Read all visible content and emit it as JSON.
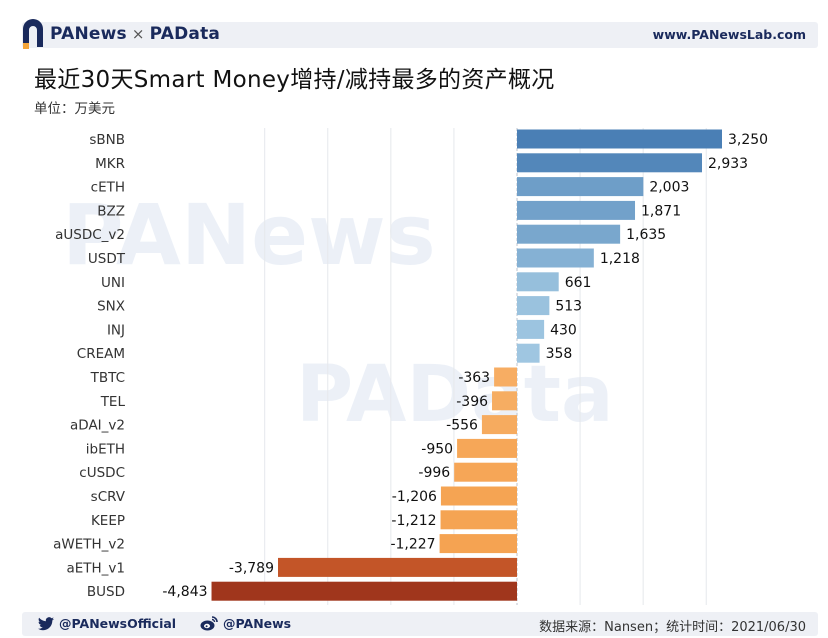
{
  "header": {
    "brand_left": "PANews",
    "brand_separator": "×",
    "brand_right": "PAData",
    "site_url": "www.PANewsLab.com"
  },
  "watermarks": {
    "primary": "PANews",
    "secondary": "PAData"
  },
  "chart_data": {
    "type": "bar",
    "orientation": "horizontal",
    "title": "最近30天Smart Money增持/减持最多的资产概况",
    "unit": "单位：万美元",
    "categories": [
      "sBNB",
      "MKR",
      "cETH",
      "BZZ",
      "aUSDC_v2",
      "USDT",
      "UNI",
      "SNX",
      "INJ",
      "CREAM",
      "TBTC",
      "TEL",
      "aDAI_v2",
      "ibETH",
      "cUSDC",
      "sCRV",
      "KEEP",
      "aWETH_v2",
      "aETH_v1",
      "BUSD"
    ],
    "values": [
      3250,
      2933,
      2003,
      1871,
      1635,
      1218,
      661,
      513,
      430,
      358,
      -363,
      -396,
      -556,
      -950,
      -996,
      -1206,
      -1212,
      -1227,
      -3789,
      -4843
    ],
    "value_labels": [
      "3,250",
      "2,933",
      "2,003",
      "1,871",
      "1,635",
      "1,218",
      "661",
      "513",
      "430",
      "358",
      "-363",
      "-396",
      "-556",
      "-950",
      "-996",
      "-1,206",
      "-1,212",
      "-1,227",
      "-3,789",
      "-4,843"
    ],
    "xlim": [
      -5000,
      3500
    ],
    "grid": true,
    "positive_color_dark": "#4a7fb5",
    "positive_color_light": "#a9cfe6",
    "negative_color_light": "#f7b16a",
    "negative_color_dark": "#a0361c"
  },
  "footer": {
    "twitter": "@PANewsOfficial",
    "weibo": "@PANews",
    "source": "数据来源：Nansen；统计时间：2021/06/30"
  },
  "icons": {
    "brand_logo": "panews-logo-icon",
    "twitter": "twitter-icon",
    "weibo": "weibo-icon"
  }
}
